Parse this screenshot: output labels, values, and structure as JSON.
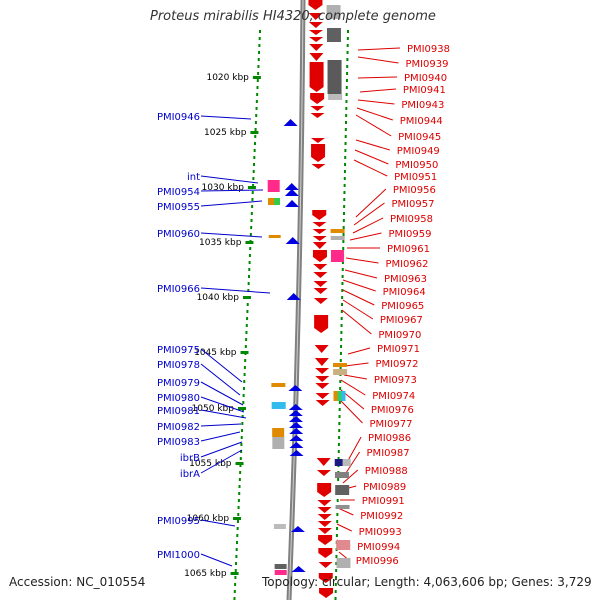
{
  "title": "Proteus mirabilis HI4320, complete genome",
  "accession": "Accession: NC_010554",
  "summary": "Topology: circular; Length: 4,063,606 bp; Genes: 3,729",
  "colors": {
    "forward": "#0000e0",
    "reverse": "#e00000",
    "label_blue": "#0000cc",
    "label_red": "#dd0000",
    "ticks": "#008800",
    "backbone": "#808080"
  },
  "kbp_ticks": [
    "1020 kbp",
    "1025 kbp",
    "1030 kbp",
    "1035 kbp",
    "1040 kbp",
    "1045 kbp",
    "1050 kbp",
    "1055 kbp",
    "1060 kbp",
    "1065 kbp"
  ],
  "left_labels": [
    "PMI0946",
    "int",
    "PMI0954",
    "PMI0955",
    "PMI0960",
    "PMI0966",
    "PMI0975",
    "PMI0978",
    "PMI0979",
    "PMI0980",
    "PMI0981",
    "PMI0982",
    "PMI0983",
    "ibrB",
    "ibrA",
    "PMI0995",
    "PMI1000"
  ],
  "right_labels": [
    "PMI0938",
    "PMI0939",
    "PMI0940",
    "PMI0941",
    "PMI0943",
    "PMI0944",
    "PMI0945",
    "PMI0949",
    "PMI0950",
    "PMI0951",
    "PMI0956",
    "PMI0957",
    "PMI0958",
    "PMI0959",
    "PMI0961",
    "PMI0962",
    "PMI0963",
    "PMI0964",
    "PMI0965",
    "PMI0967",
    "PMI0970",
    "PMI0971",
    "PMI0972",
    "PMI0973",
    "PMI0974",
    "PMI0976",
    "PMI0977",
    "PMI0986",
    "PMI0987",
    "PMI0988",
    "PMI0989",
    "PMI0991",
    "PMI0992",
    "PMI0993",
    "PMI0994",
    "PMI0996"
  ]
}
